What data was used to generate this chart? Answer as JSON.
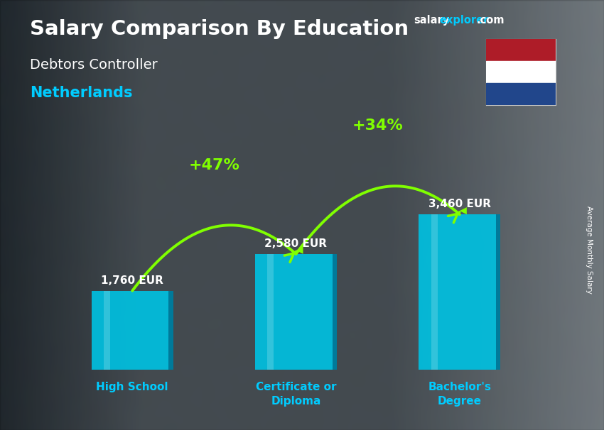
{
  "title_main": "Salary Comparison By Education",
  "subtitle_job": "Debtors Controller",
  "subtitle_country": "Netherlands",
  "ylabel": "Average Monthly Salary",
  "categories": [
    "High School",
    "Certificate or\nDiploma",
    "Bachelor's\nDegree"
  ],
  "values": [
    1760,
    2580,
    3460
  ],
  "value_labels": [
    "1,760 EUR",
    "2,580 EUR",
    "3,460 EUR"
  ],
  "pct_labels": [
    "+47%",
    "+34%"
  ],
  "bar_color": "#00c0e0",
  "bar_alpha": 0.92,
  "bar_right_color": "#007090",
  "background_dark": "#2a3540",
  "title_color": "#ffffff",
  "subtitle_job_color": "#ffffff",
  "subtitle_country_color": "#00ccff",
  "value_label_color": "#ffffff",
  "pct_color": "#80ff00",
  "arrow_color": "#80ff00",
  "xtick_color": "#00ccff",
  "brand_color_salary": "#ffffff",
  "brand_color_explorer": "#00ccff",
  "flag_colors": [
    "#ae1c28",
    "#ffffff",
    "#21468b"
  ],
  "figsize": [
    8.5,
    6.06
  ],
  "dpi": 100
}
